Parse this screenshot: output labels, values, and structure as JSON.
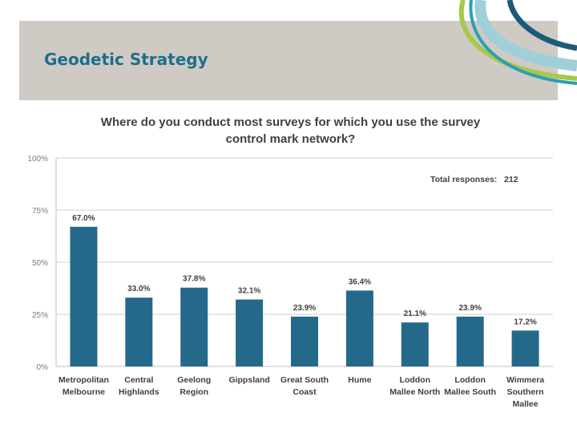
{
  "header": {
    "title": "Geodetic Strategy"
  },
  "colors": {
    "header_band": "#cfcac4",
    "title_text": "#1f6e8c",
    "bar": "#24698a",
    "deco_green": "#a8c84a",
    "deco_teal": "#2aa0b5",
    "deco_light": "#9fd0d8",
    "deco_navy": "#1d5a7a"
  },
  "chart_data": {
    "type": "bar",
    "title_lines": [
      "Where do you conduct most surveys for which you use the survey",
      "control mark network?"
    ],
    "annotation": "Total responses:   212",
    "categories": [
      [
        "Metropolitan",
        "Melbourne"
      ],
      [
        "Central",
        "Highlands"
      ],
      [
        "Geelong",
        "Region"
      ],
      [
        "Gippsland"
      ],
      [
        "Great South",
        "Coast"
      ],
      [
        "Hume"
      ],
      [
        "Loddon",
        "Mallee North"
      ],
      [
        "Loddon",
        "Mallee South"
      ],
      [
        "Wimmera",
        "Southern",
        "Mallee"
      ]
    ],
    "values": [
      67.0,
      33.0,
      37.8,
      32.1,
      23.9,
      36.4,
      21.1,
      23.9,
      17.2
    ],
    "value_labels": [
      "67.0%",
      "33.0%",
      "37.8%",
      "32.1%",
      "23.9%",
      "36.4%",
      "21.1%",
      "23.9%",
      "17.2%"
    ],
    "y_ticks": [
      0,
      25,
      50,
      75,
      100
    ],
    "y_tick_labels": [
      "0%",
      "25%",
      "50%",
      "75%",
      "100%"
    ],
    "ylim": [
      0,
      100
    ],
    "grid": true,
    "legend": "none"
  }
}
